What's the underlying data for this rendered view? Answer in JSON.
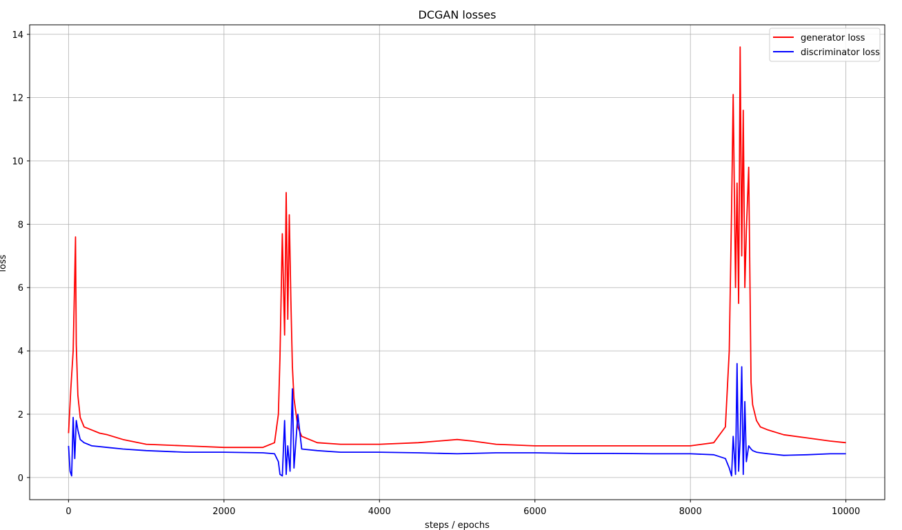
{
  "chart_data": {
    "type": "line",
    "title": "DCGAN losses",
    "xlabel": "steps / epochs",
    "ylabel": "loss",
    "xlim": [
      -500,
      10500
    ],
    "ylim": [
      -0.7,
      14.3
    ],
    "xticks": [
      0,
      2000,
      4000,
      6000,
      8000,
      10000
    ],
    "xtick_labels": [
      "0",
      "2000",
      "4000",
      "6000",
      "8000",
      "10000"
    ],
    "yticks": [
      0,
      2,
      4,
      6,
      8,
      10,
      12,
      14
    ],
    "ytick_labels": [
      "0",
      "2",
      "4",
      "6",
      "8",
      "10",
      "12",
      "14"
    ],
    "grid": true,
    "legend_position": "top-right",
    "series": [
      {
        "name": "generator loss",
        "color": "#ff0000",
        "x": [
          0,
          30,
          60,
          80,
          90,
          100,
          120,
          150,
          200,
          300,
          400,
          500,
          700,
          1000,
          1500,
          2000,
          2500,
          2650,
          2700,
          2720,
          2750,
          2780,
          2800,
          2820,
          2840,
          2860,
          2880,
          2900,
          2950,
          3000,
          3200,
          3500,
          4000,
          4500,
          5000,
          5200,
          5500,
          6000,
          6500,
          7000,
          7500,
          8000,
          8300,
          8450,
          8500,
          8530,
          8550,
          8580,
          8600,
          8620,
          8640,
          8660,
          8680,
          8700,
          8720,
          8750,
          8780,
          8800,
          8850,
          8900,
          9000,
          9200,
          9500,
          9800,
          10000
        ],
        "y": [
          1.4,
          2.8,
          4.0,
          6.4,
          7.6,
          4.2,
          2.6,
          1.9,
          1.6,
          1.5,
          1.4,
          1.35,
          1.2,
          1.05,
          1.0,
          0.95,
          0.95,
          1.1,
          2.0,
          3.8,
          7.7,
          4.5,
          9.0,
          5.0,
          8.3,
          5.6,
          3.5,
          2.5,
          1.6,
          1.3,
          1.1,
          1.05,
          1.05,
          1.1,
          1.2,
          1.15,
          1.05,
          1.0,
          1.0,
          1.0,
          1.0,
          1.0,
          1.1,
          1.6,
          4.0,
          8.5,
          12.1,
          6.0,
          9.3,
          5.5,
          13.6,
          7.0,
          11.6,
          6.0,
          7.8,
          9.8,
          3.0,
          2.3,
          1.8,
          1.6,
          1.5,
          1.35,
          1.25,
          1.15,
          1.1
        ]
      },
      {
        "name": "discriminator loss",
        "color": "#0000ff",
        "x": [
          0,
          20,
          40,
          60,
          80,
          100,
          120,
          150,
          200,
          300,
          500,
          700,
          1000,
          1500,
          2000,
          2500,
          2650,
          2700,
          2720,
          2750,
          2780,
          2800,
          2820,
          2850,
          2880,
          2900,
          2950,
          3000,
          3200,
          3500,
          4000,
          4500,
          5000,
          5500,
          6000,
          6500,
          7000,
          7500,
          8000,
          8300,
          8450,
          8500,
          8530,
          8550,
          8580,
          8600,
          8620,
          8640,
          8660,
          8680,
          8700,
          8720,
          8750,
          8780,
          8800,
          8850,
          8900,
          9000,
          9200,
          9500,
          9800,
          10000
        ],
        "y": [
          1.0,
          0.2,
          0.05,
          1.9,
          0.6,
          1.8,
          1.5,
          1.2,
          1.1,
          1.0,
          0.95,
          0.9,
          0.85,
          0.8,
          0.8,
          0.78,
          0.75,
          0.5,
          0.1,
          0.05,
          1.8,
          0.1,
          1.0,
          0.2,
          2.8,
          0.3,
          2.0,
          0.9,
          0.85,
          0.8,
          0.8,
          0.78,
          0.75,
          0.78,
          0.78,
          0.76,
          0.76,
          0.75,
          0.75,
          0.72,
          0.6,
          0.3,
          0.05,
          1.3,
          0.1,
          3.6,
          0.2,
          1.2,
          3.5,
          0.1,
          2.4,
          0.5,
          1.0,
          0.9,
          0.85,
          0.8,
          0.78,
          0.75,
          0.7,
          0.72,
          0.75,
          0.75
        ]
      }
    ]
  }
}
